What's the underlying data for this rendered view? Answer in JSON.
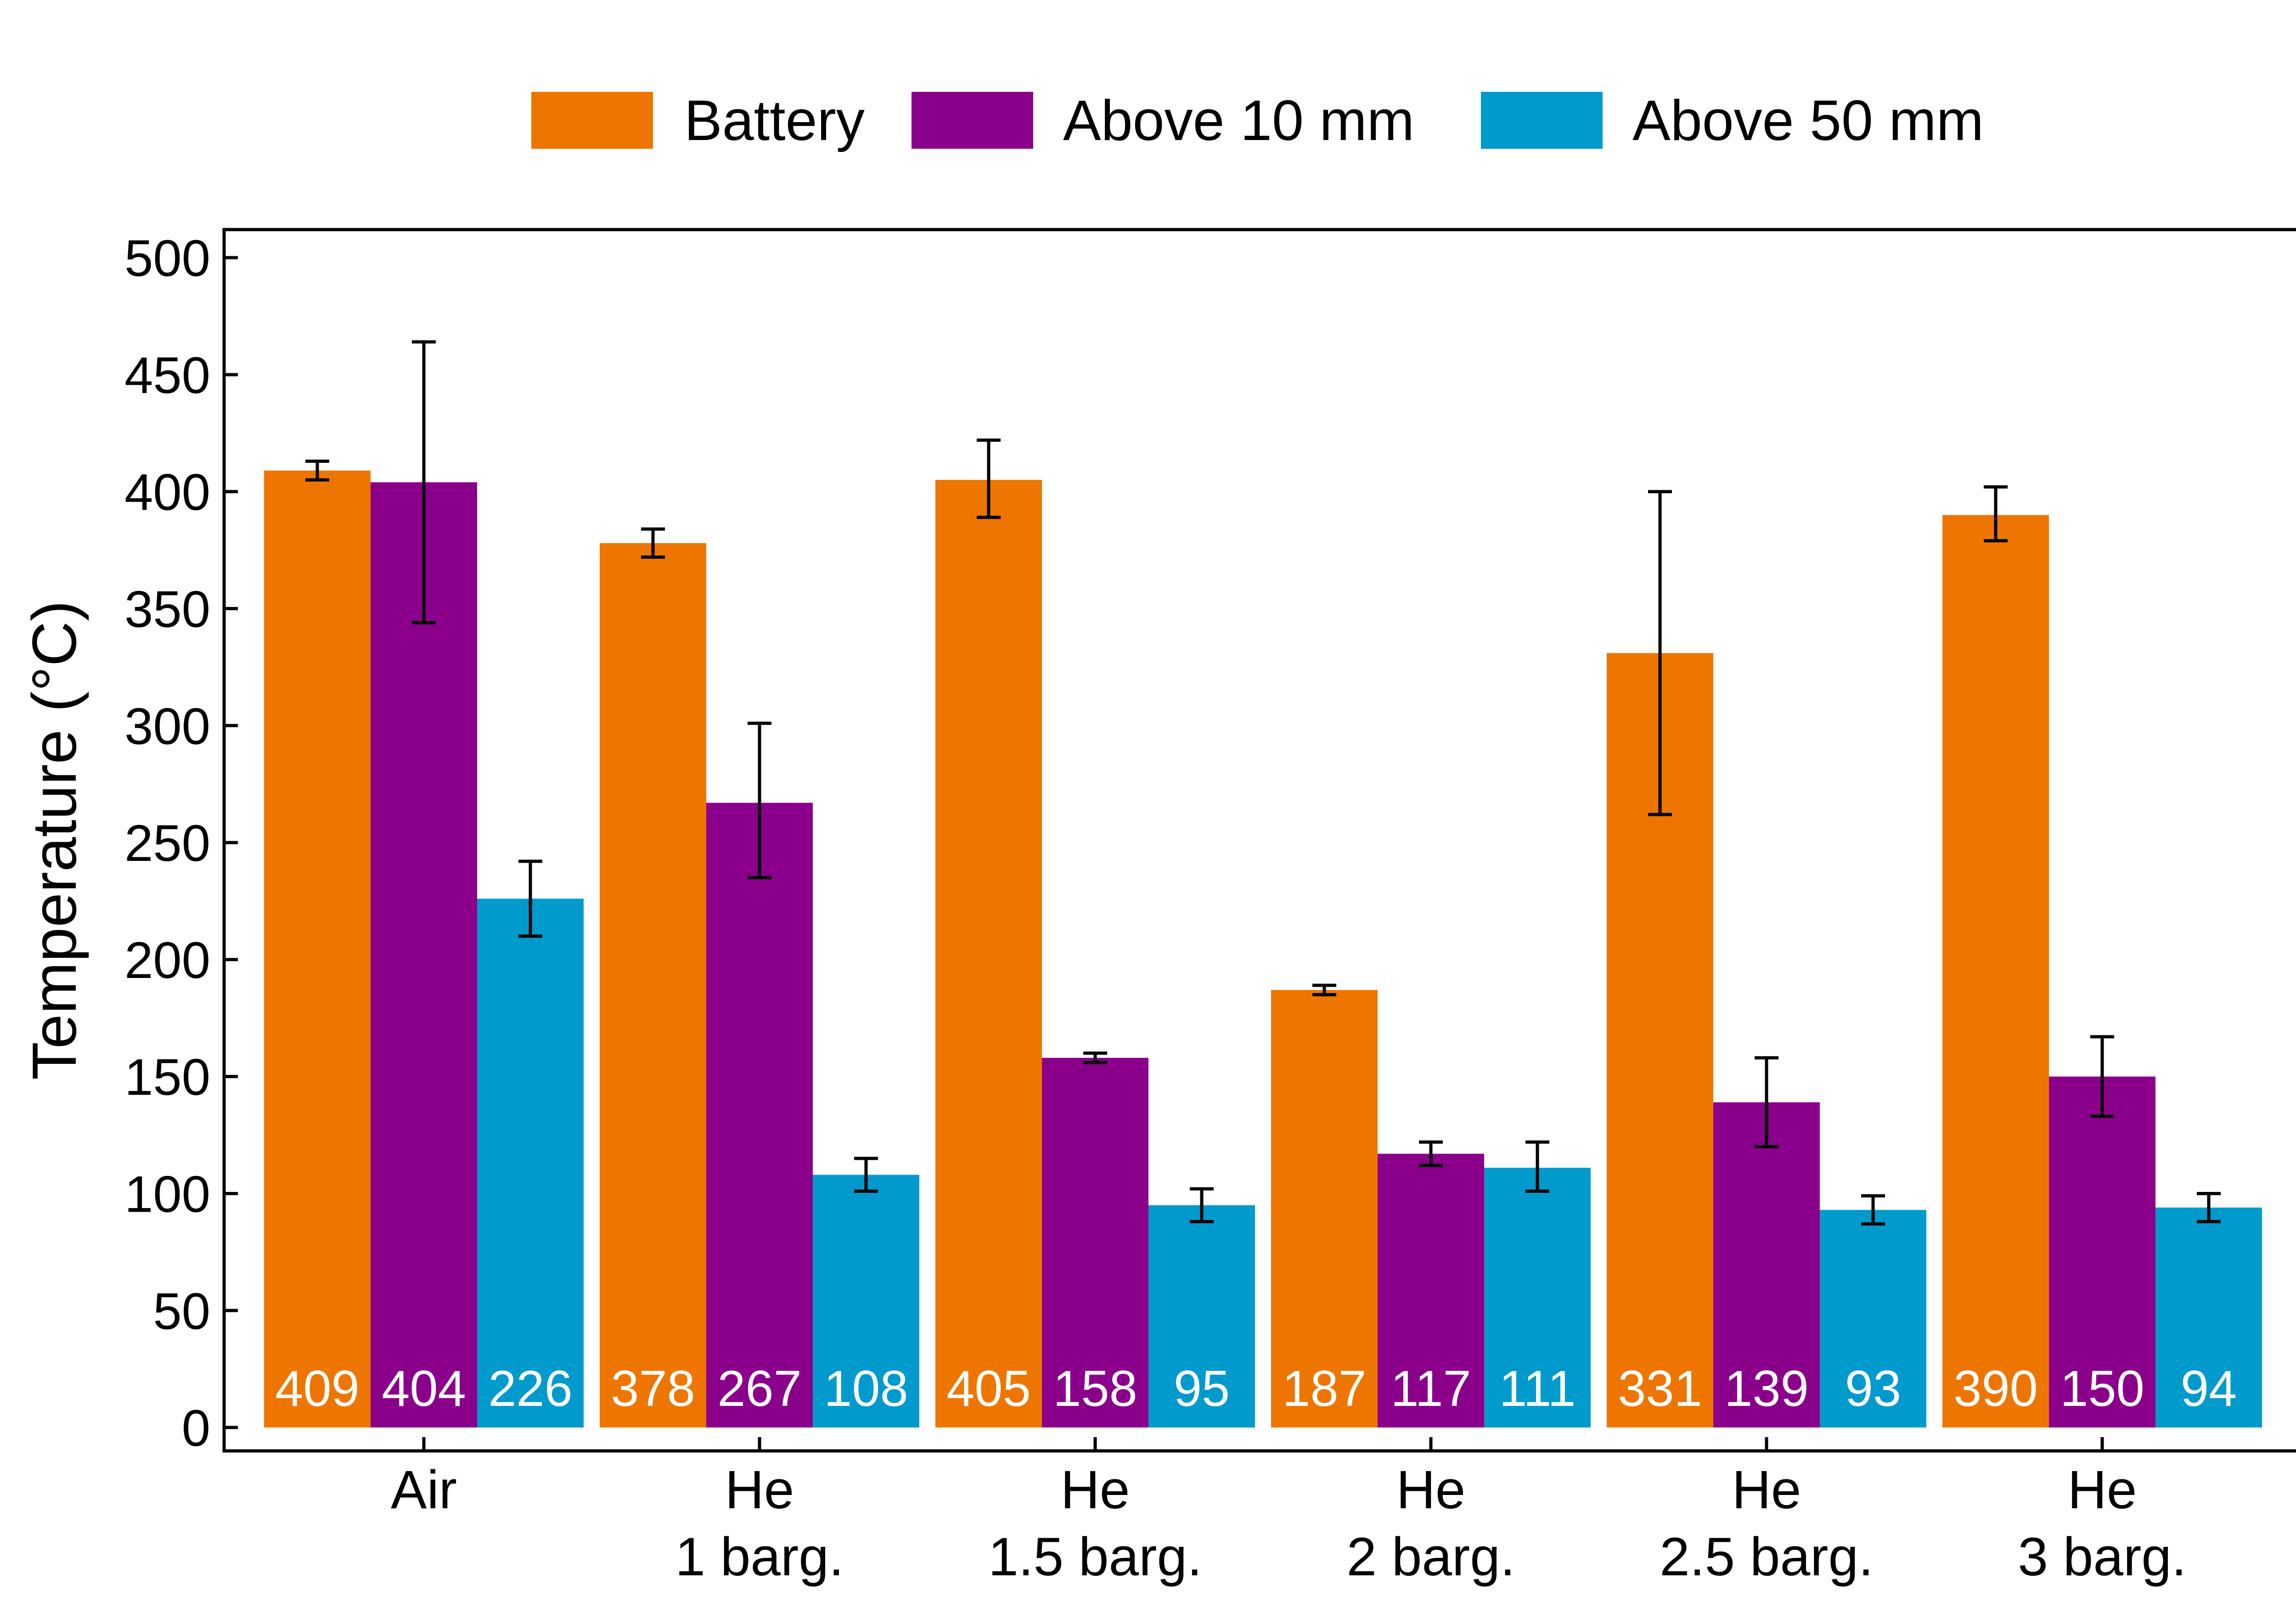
{
  "chart_data": {
    "type": "bar",
    "ylabel": "Temperature (°C)",
    "ylim": [
      -10,
      512
    ],
    "yticks": [
      0,
      50,
      100,
      150,
      200,
      250,
      300,
      350,
      400,
      450,
      500
    ],
    "categories": [
      [
        "Air"
      ],
      [
        "He",
        "1 barg."
      ],
      [
        "He",
        "1.5 barg."
      ],
      [
        "He",
        "2 barg."
      ],
      [
        "He",
        "2.5 barg."
      ],
      [
        "He",
        "3 barg."
      ]
    ],
    "legend_position": "top",
    "grid": false,
    "series": [
      {
        "name": "Battery",
        "color": "#EE7600",
        "values": [
          409,
          378,
          405,
          187,
          331,
          390
        ],
        "labels": [
          "409",
          "378",
          "405",
          "187",
          "331",
          "390"
        ],
        "errors": [
          [
            405,
            413
          ],
          [
            372,
            384
          ],
          [
            389,
            422
          ],
          [
            185,
            189
          ],
          [
            262,
            400
          ],
          [
            379,
            402
          ]
        ]
      },
      {
        "name": "Above 10 mm",
        "color": "#8B008B",
        "values": [
          404,
          267,
          158,
          117,
          139,
          150
        ],
        "labels": [
          "404",
          "267",
          "158",
          "117",
          "139",
          "150"
        ],
        "errors": [
          [
            344,
            464
          ],
          [
            235,
            301
          ],
          [
            156,
            160
          ],
          [
            112,
            122
          ],
          [
            120,
            158
          ],
          [
            133,
            167
          ]
        ]
      },
      {
        "name": "Above 50 mm",
        "color": "#009ACD",
        "values": [
          226,
          108,
          95,
          111,
          93,
          94
        ],
        "labels": [
          "226",
          "108",
          "95",
          "111",
          "93",
          "94"
        ],
        "errors": [
          [
            210,
            242
          ],
          [
            101,
            115
          ],
          [
            88,
            102
          ],
          [
            101,
            122
          ],
          [
            87,
            99
          ],
          [
            88,
            100
          ]
        ]
      }
    ]
  }
}
